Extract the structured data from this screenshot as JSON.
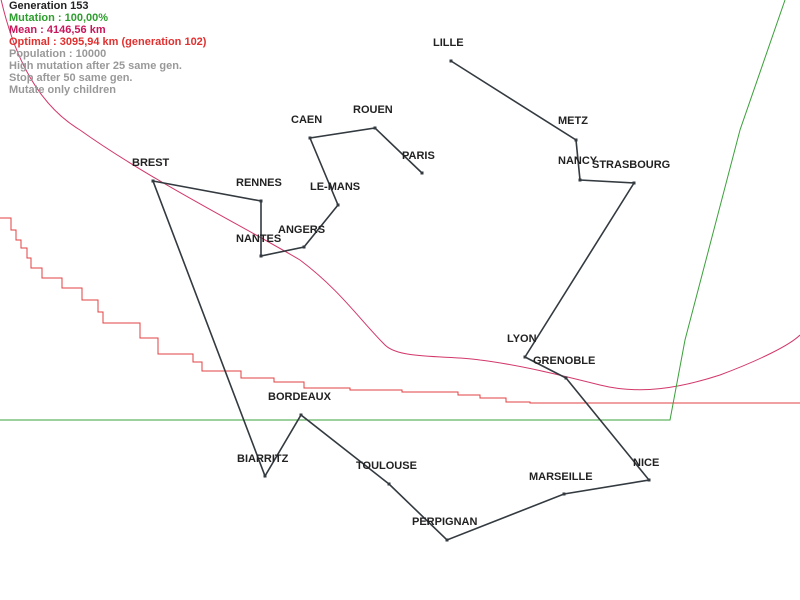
{
  "stats": {
    "generation": "Generation 153",
    "mutation": "Mutation : 100,00%",
    "mean": "Mean : 4146,56 km",
    "optimal": "Optimal : 3095,94 km (generation 102)",
    "population": "Population : 10000",
    "high_mutation": "High mutation after 25 same gen.",
    "stop": "Stop after 50 same gen.",
    "mutate_children": "Mutate only children"
  },
  "colors": {
    "generation": "#222222",
    "mutation": "#2e9e2e",
    "mean": "#c8185c",
    "optimal": "#e03030",
    "options": "#999999",
    "route": "#333a40",
    "mean_curve": "#d2386a",
    "optimal_curve": "#e04040",
    "mutation_curve": "#3aa03a"
  },
  "cities": [
    {
      "name": "LILLE"
    },
    {
      "name": "METZ"
    },
    {
      "name": "NANCY"
    },
    {
      "name": "STRASBOURG"
    },
    {
      "name": "LYON"
    },
    {
      "name": "GRENOBLE"
    },
    {
      "name": "NICE"
    },
    {
      "name": "MARSEILLE"
    },
    {
      "name": "PERPIGNAN"
    },
    {
      "name": "TOULOUSE"
    },
    {
      "name": "BORDEAUX"
    },
    {
      "name": "BIARRITZ"
    },
    {
      "name": "BREST"
    },
    {
      "name": "RENNES"
    },
    {
      "name": "NANTES"
    },
    {
      "name": "ANGERS"
    },
    {
      "name": "LE-MANS"
    },
    {
      "name": "CAEN"
    },
    {
      "name": "ROUEN"
    },
    {
      "name": "PARIS"
    }
  ]
}
